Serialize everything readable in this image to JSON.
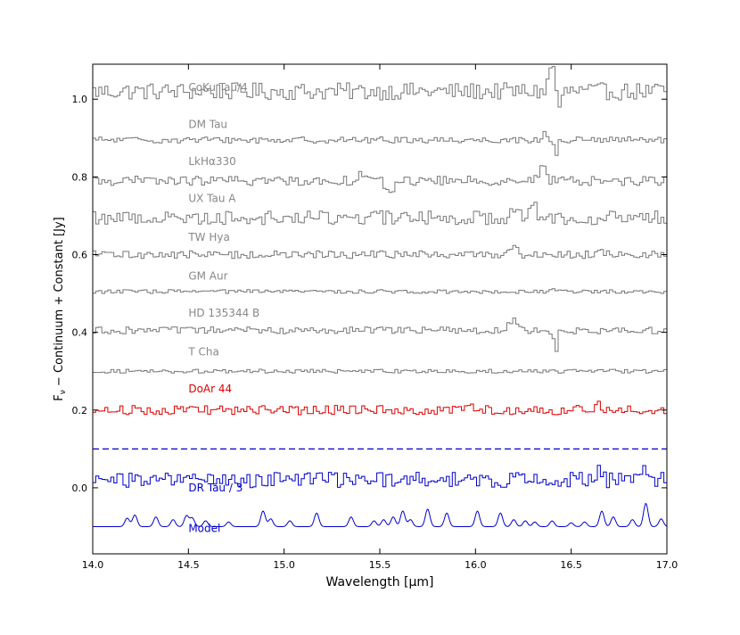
{
  "chart_data": {
    "type": "line",
    "title": "",
    "xlabel": "Wavelength [μm]",
    "ylabel": "F_ν − Continuum + Constant [Jy]",
    "ylabel_parts": {
      "base": "F",
      "sub": "ν",
      "rest": " − Continuum + Constant [Jy]"
    },
    "xlim": [
      14.0,
      17.0
    ],
    "ylim": [
      -0.17,
      1.09
    ],
    "xticks": [
      14.0,
      14.5,
      15.0,
      15.5,
      16.0,
      16.5,
      17.0
    ],
    "xtick_labels": [
      "14.0",
      "14.5",
      "15.0",
      "15.5",
      "16.0",
      "16.5",
      "17.0"
    ],
    "yticks": [
      0.0,
      0.2,
      0.4,
      0.6,
      0.8,
      1.0
    ],
    "ytick_labels": [
      "0.0",
      "0.2",
      "0.4",
      "0.6",
      "0.8",
      "1.0"
    ],
    "grid": false,
    "reference_line": {
      "y": 0.1,
      "style": "dashed",
      "color": "#0000cc"
    },
    "series": [
      {
        "name": "CoKu Tau/4",
        "label_x": 14.5,
        "label_y": 1.03,
        "offset": 1.02,
        "amplitude": 0.022,
        "style": "step",
        "color": "#777777",
        "label_color": "#888888",
        "features": [
          [
            16.4,
            0.07,
            0.015
          ],
          [
            16.44,
            -0.05,
            0.01
          ]
        ]
      },
      {
        "name": "DM Tau",
        "label_x": 14.5,
        "label_y": 0.935,
        "offset": 0.895,
        "amplitude": 0.008,
        "style": "step",
        "color": "#777777",
        "label_color": "#888888",
        "features": [
          [
            16.42,
            -0.05,
            0.008
          ],
          [
            16.36,
            0.02,
            0.01
          ]
        ]
      },
      {
        "name": "LkHα330",
        "label_x": 14.5,
        "label_y": 0.84,
        "offset": 0.79,
        "amplitude": 0.012,
        "style": "step",
        "color": "#777777",
        "label_color": "#888888",
        "features": [
          [
            15.4,
            0.02,
            0.02
          ],
          [
            15.55,
            -0.03,
            0.02
          ],
          [
            16.35,
            0.03,
            0.02
          ]
        ]
      },
      {
        "name": "UX Tau A",
        "label_x": 14.5,
        "label_y": 0.745,
        "offset": 0.695,
        "amplitude": 0.018,
        "style": "step",
        "color": "#777777",
        "label_color": "#888888",
        "features": [
          [
            16.2,
            0.03,
            0.02
          ],
          [
            16.3,
            0.04,
            0.015
          ]
        ]
      },
      {
        "name": "TW Hya",
        "label_x": 14.5,
        "label_y": 0.645,
        "offset": 0.6,
        "amplitude": 0.01,
        "style": "step",
        "color": "#777777",
        "label_color": "#888888",
        "features": [
          [
            16.2,
            0.02,
            0.02
          ],
          [
            16.65,
            0.015,
            0.02
          ]
        ]
      },
      {
        "name": "GM Aur",
        "label_x": 14.5,
        "label_y": 0.545,
        "offset": 0.505,
        "amplitude": 0.005,
        "style": "step",
        "color": "#777777",
        "label_color": "#888888",
        "features": [
          [
            16.4,
            0.01,
            0.01
          ]
        ]
      },
      {
        "name": "HD 135344 B",
        "label_x": 14.5,
        "label_y": 0.45,
        "offset": 0.405,
        "amplitude": 0.009,
        "style": "step",
        "color": "#777777",
        "label_color": "#888888",
        "features": [
          [
            16.2,
            0.025,
            0.03
          ],
          [
            16.42,
            -0.05,
            0.01
          ]
        ]
      },
      {
        "name": "T Cha",
        "label_x": 14.5,
        "label_y": 0.35,
        "offset": 0.3,
        "amplitude": 0.005,
        "style": "step",
        "color": "#777777",
        "label_color": "#888888",
        "features": []
      },
      {
        "name": "DoAr 44",
        "label_x": 14.5,
        "label_y": 0.255,
        "offset": 0.2,
        "amplitude": 0.012,
        "style": "step",
        "color": "#dd0000",
        "label_color": "#dd0000",
        "features": [
          [
            16.65,
            0.02,
            0.01
          ],
          [
            15.97,
            0.015,
            0.01
          ]
        ]
      },
      {
        "name": "DR Tau / 3",
        "label_x": 14.5,
        "label_y": 0.0,
        "offset": 0.02,
        "amplitude": 0.02,
        "style": "step",
        "color": "#0000cc",
        "label_color": "#0000cc",
        "features": [
          [
            16.65,
            0.04,
            0.01
          ],
          [
            16.88,
            0.03,
            0.01
          ],
          [
            14.5,
            0.025,
            0.01
          ]
        ]
      },
      {
        "name": "Model",
        "label_x": 14.5,
        "label_y": -0.105,
        "offset": -0.1,
        "amplitude": 0.0,
        "style": "smooth",
        "color": "#0000cc",
        "label_color": "#0000cc",
        "features": []
      }
    ],
    "model_peaks": [
      [
        14.18,
        0.022
      ],
      [
        14.22,
        0.03
      ],
      [
        14.33,
        0.025
      ],
      [
        14.42,
        0.018
      ],
      [
        14.49,
        0.028
      ],
      [
        14.52,
        0.022
      ],
      [
        14.59,
        0.015
      ],
      [
        14.71,
        0.012
      ],
      [
        14.89,
        0.04
      ],
      [
        14.93,
        0.02
      ],
      [
        15.03,
        0.015
      ],
      [
        15.17,
        0.035
      ],
      [
        15.35,
        0.025
      ],
      [
        15.47,
        0.015
      ],
      [
        15.52,
        0.018
      ],
      [
        15.57,
        0.025
      ],
      [
        15.62,
        0.04
      ],
      [
        15.66,
        0.018
      ],
      [
        15.75,
        0.045
      ],
      [
        15.85,
        0.035
      ],
      [
        16.01,
        0.04
      ],
      [
        16.13,
        0.035
      ],
      [
        16.2,
        0.018
      ],
      [
        16.26,
        0.015
      ],
      [
        16.31,
        0.012
      ],
      [
        16.4,
        0.015
      ],
      [
        16.5,
        0.01
      ],
      [
        16.57,
        0.012
      ],
      [
        16.66,
        0.04
      ],
      [
        16.72,
        0.025
      ],
      [
        16.82,
        0.018
      ],
      [
        16.89,
        0.06
      ],
      [
        16.97,
        0.02
      ]
    ]
  }
}
